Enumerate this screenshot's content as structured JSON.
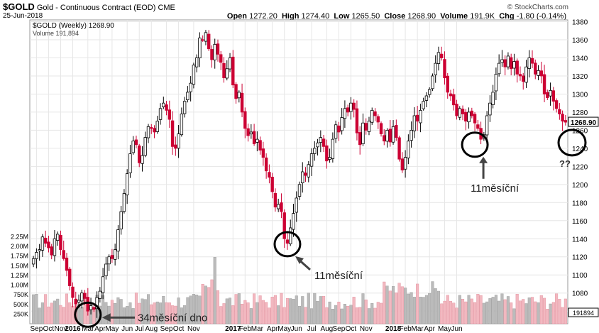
{
  "header": {
    "ticker": "$GOLD",
    "name": "Gold - Continuous Contract (EOD)",
    "exchange": "CME",
    "date": "25-Jun-2018",
    "watermark": "© StockCharts.com",
    "open_label": "Open",
    "open": "1272.20",
    "high_label": "High",
    "high": "1274.40",
    "low_label": "Low",
    "low": "1265.50",
    "close_label": "Close",
    "close": "1268.90",
    "volume_label": "Volume",
    "volume": "191.9K",
    "chg_label": "Chg",
    "chg": "-1.80 (-0.14%)",
    "legend_price": "$GOLD (Weekly) 1268.90",
    "legend_volume": "Volume 191,894"
  },
  "colors": {
    "up": "#000000",
    "down": "#cc0033",
    "vol_up": "#bbbbbb",
    "vol_down": "#f2b8c0",
    "grid": "#e6e6e6"
  },
  "chart_data": {
    "type": "candlestick",
    "title": "$GOLD (Weekly)",
    "price_axis": {
      "ticks": [
        1060,
        1080,
        1100,
        1120,
        1140,
        1160,
        1180,
        1200,
        1220,
        1240,
        1260,
        1280,
        1300,
        1320,
        1340,
        1360,
        1380
      ],
      "range": [
        1046,
        1382
      ],
      "last_label": "1268.90"
    },
    "volume_axis": {
      "ticks": [
        "250K",
        "500K",
        "750K",
        "1.00M",
        "1.25M",
        "1.50M",
        "1.75M",
        "2.00M",
        "2.25M"
      ],
      "values_k": [
        250,
        500,
        750,
        1000,
        1250,
        1500,
        1750,
        2000,
        2250
      ]
    },
    "volume_last_label": "191894",
    "x_axis": [
      {
        "i": 1,
        "label": "Sep",
        "bold": false
      },
      {
        "i": 5,
        "label": "Oct",
        "bold": false
      },
      {
        "i": 9,
        "label": "Nov",
        "bold": false
      },
      {
        "i": 13,
        "label": "2016",
        "bold": true
      },
      {
        "i": 18,
        "label": "Mar",
        "bold": false
      },
      {
        "i": 22,
        "label": "Apr",
        "bold": false
      },
      {
        "i": 26,
        "label": "May",
        "bold": false
      },
      {
        "i": 31,
        "label": "Jun",
        "bold": false
      },
      {
        "i": 35,
        "label": "Jul",
        "bold": false
      },
      {
        "i": 39,
        "label": "Aug",
        "bold": false
      },
      {
        "i": 44,
        "label": "Sep",
        "bold": false
      },
      {
        "i": 48,
        "label": "Oct",
        "bold": false
      },
      {
        "i": 53,
        "label": "Nov",
        "bold": false
      },
      {
        "i": 66,
        "label": "2017",
        "bold": true
      },
      {
        "i": 70,
        "label": "Feb",
        "bold": false
      },
      {
        "i": 74,
        "label": "Mar",
        "bold": false
      },
      {
        "i": 79,
        "label": "Apr",
        "bold": false
      },
      {
        "i": 83,
        "label": "May",
        "bold": false
      },
      {
        "i": 87,
        "label": "Jun",
        "bold": false
      },
      {
        "i": 92,
        "label": "Jul",
        "bold": false
      },
      {
        "i": 97,
        "label": "Aug",
        "bold": false
      },
      {
        "i": 101,
        "label": "Sep",
        "bold": false
      },
      {
        "i": 105,
        "label": "Oct",
        "bold": false
      },
      {
        "i": 110,
        "label": "Nov",
        "bold": false
      },
      {
        "i": 119,
        "label": "2018",
        "bold": true
      },
      {
        "i": 123,
        "label": "Feb",
        "bold": false
      },
      {
        "i": 127,
        "label": "Mar",
        "bold": false
      },
      {
        "i": 131,
        "label": "Apr",
        "bold": false
      },
      {
        "i": 136,
        "label": "May",
        "bold": false
      },
      {
        "i": 140,
        "label": "Jun",
        "bold": false
      }
    ],
    "closes": [
      1118,
      1125,
      1128,
      1142,
      1135,
      1130,
      1122,
      1140,
      1145,
      1128,
      1118,
      1105,
      1088,
      1075,
      1068,
      1072,
      1080,
      1074,
      1060,
      1066,
      1062,
      1075,
      1082,
      1098,
      1112,
      1120,
      1118,
      1128,
      1150,
      1170,
      1190,
      1212,
      1234,
      1248,
      1244,
      1224,
      1232,
      1252,
      1264,
      1262,
      1258,
      1270,
      1284,
      1290,
      1282,
      1272,
      1242,
      1240,
      1256,
      1278,
      1292,
      1302,
      1312,
      1332,
      1340,
      1362,
      1360,
      1368,
      1350,
      1338,
      1355,
      1344,
      1335,
      1318,
      1328,
      1340,
      1310,
      1295,
      1302,
      1280,
      1262,
      1254,
      1258,
      1245,
      1250,
      1238,
      1230,
      1215,
      1208,
      1192,
      1175,
      1178,
      1170,
      1140,
      1135,
      1152,
      1168,
      1185,
      1200,
      1214,
      1210,
      1222,
      1234,
      1240,
      1246,
      1252,
      1242,
      1226,
      1230,
      1250,
      1266,
      1258,
      1274,
      1284,
      1280,
      1290,
      1283,
      1257,
      1244,
      1268,
      1260,
      1270,
      1282,
      1276,
      1269,
      1256,
      1248,
      1260,
      1247,
      1264,
      1252,
      1228,
      1216,
      1230,
      1248,
      1260,
      1276,
      1270,
      1282,
      1292,
      1298,
      1305,
      1320,
      1334,
      1346,
      1340,
      1318,
      1302,
      1298,
      1288,
      1276,
      1284,
      1278,
      1270,
      1280,
      1276,
      1268,
      1262,
      1250,
      1255,
      1276,
      1290,
      1302,
      1322,
      1334,
      1338,
      1330,
      1342,
      1328,
      1336,
      1322,
      1320,
      1314,
      1330,
      1340,
      1334,
      1322,
      1326,
      1320,
      1300,
      1296,
      1304,
      1292,
      1284,
      1278,
      1270,
      1268.9
    ],
    "annotations": [
      {
        "text": "34měsíční dno",
        "circle_i": 18,
        "circle_price": 1056
      },
      {
        "text": "11měsíční",
        "circle_i": 84,
        "circle_price": 1134
      },
      {
        "text": "11měsíční",
        "circle_i": 146,
        "circle_price": 1244
      },
      {
        "text": "??",
        "circle_price": 1240
      }
    ]
  }
}
